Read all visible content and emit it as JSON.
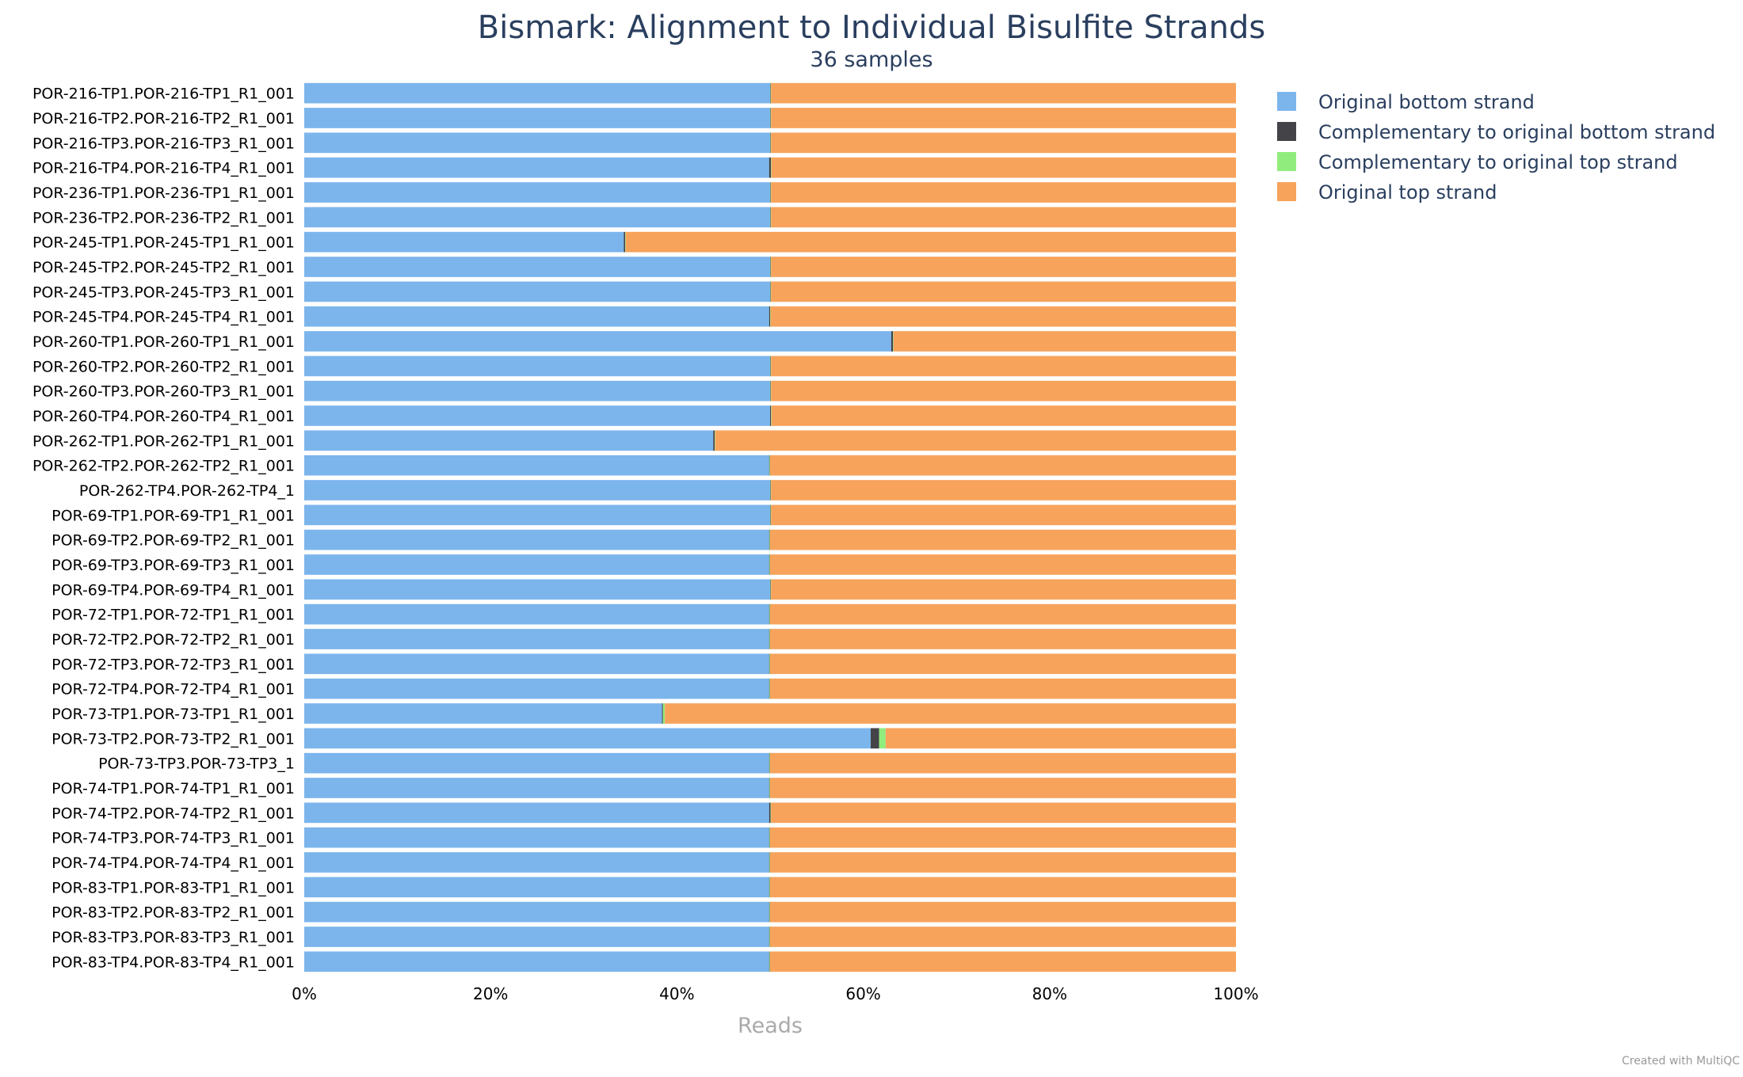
{
  "chart_data": {
    "type": "bar",
    "orientation": "horizontal",
    "stacking": "percent",
    "title": "Bismark: Alignment to Individual Bisulfite Strands",
    "subtitle": "36 samples",
    "xlabel": "Reads",
    "xlim": [
      0,
      100
    ],
    "xticks": [
      "0%",
      "20%",
      "40%",
      "60%",
      "80%",
      "100%"
    ],
    "legend_position": "top-right",
    "credit": "Created with MultiQC",
    "categories": [
      "POR-216-TP1.POR-216-TP1_R1_001",
      "POR-216-TP2.POR-216-TP2_R1_001",
      "POR-216-TP3.POR-216-TP3_R1_001",
      "POR-216-TP4.POR-216-TP4_R1_001",
      "POR-236-TP1.POR-236-TP1_R1_001",
      "POR-236-TP2.POR-236-TP2_R1_001",
      "POR-245-TP1.POR-245-TP1_R1_001",
      "POR-245-TP2.POR-245-TP2_R1_001",
      "POR-245-TP3.POR-245-TP3_R1_001",
      "POR-245-TP4.POR-245-TP4_R1_001",
      "POR-260-TP1.POR-260-TP1_R1_001",
      "POR-260-TP2.POR-260-TP2_R1_001",
      "POR-260-TP3.POR-260-TP3_R1_001",
      "POR-260-TP4.POR-260-TP4_R1_001",
      "POR-262-TP1.POR-262-TP1_R1_001",
      "POR-262-TP2.POR-262-TP2_R1_001",
      "POR-262-TP4.POR-262-TP4_1",
      "POR-69-TP1.POR-69-TP1_R1_001",
      "POR-69-TP2.POR-69-TP2_R1_001",
      "POR-69-TP3.POR-69-TP3_R1_001",
      "POR-69-TP4.POR-69-TP4_R1_001",
      "POR-72-TP1.POR-72-TP1_R1_001",
      "POR-72-TP2.POR-72-TP2_R1_001",
      "POR-72-TP3.POR-72-TP3_R1_001",
      "POR-72-TP4.POR-72-TP4_R1_001",
      "POR-73-TP1.POR-73-TP1_R1_001",
      "POR-73-TP2.POR-73-TP2_R1_001",
      "POR-73-TP3.POR-73-TP3_1",
      "POR-74-TP1.POR-74-TP1_R1_001",
      "POR-74-TP2.POR-74-TP2_R1_001",
      "POR-74-TP3.POR-74-TP3_R1_001",
      "POR-74-TP4.POR-74-TP4_R1_001",
      "POR-83-TP1.POR-83-TP1_R1_001",
      "POR-83-TP2.POR-83-TP2_R1_001",
      "POR-83-TP3.POR-83-TP3_R1_001",
      "POR-83-TP4.POR-83-TP4_R1_001"
    ],
    "series": [
      {
        "name": "Original bottom strand",
        "color": "#7cb5ec",
        "values": [
          50.0,
          50.0,
          50.0,
          49.9,
          50.0,
          50.0,
          34.3,
          50.0,
          50.0,
          49.9,
          63.0,
          50.0,
          50.0,
          50.0,
          43.9,
          49.9,
          50.0,
          50.0,
          49.9,
          49.9,
          50.0,
          49.9,
          49.9,
          49.9,
          49.9,
          38.4,
          60.8,
          49.9,
          49.9,
          49.9,
          49.9,
          49.9,
          49.9,
          49.9,
          49.9,
          49.9
        ]
      },
      {
        "name": "Complementary to original bottom strand",
        "color": "#434348",
        "values": [
          0.05,
          0.05,
          0.05,
          0.2,
          0.05,
          0.05,
          0.15,
          0.05,
          0.05,
          0.1,
          0.2,
          0.05,
          0.05,
          0.1,
          0.15,
          0.05,
          0.05,
          0.05,
          0.05,
          0.05,
          0.05,
          0.05,
          0.05,
          0.05,
          0.05,
          0.1,
          0.9,
          0.05,
          0.05,
          0.15,
          0.05,
          0.05,
          0.05,
          0.05,
          0.05,
          0.05
        ]
      },
      {
        "name": "Complementary to original top strand",
        "color": "#90ed7d",
        "values": [
          0.05,
          0.05,
          0.05,
          0.05,
          0.05,
          0.05,
          0.05,
          0.05,
          0.05,
          0.05,
          0.05,
          0.05,
          0.05,
          0.05,
          0.05,
          0.05,
          0.05,
          0.05,
          0.05,
          0.05,
          0.05,
          0.05,
          0.05,
          0.05,
          0.05,
          0.2,
          0.7,
          0.05,
          0.05,
          0.05,
          0.05,
          0.05,
          0.05,
          0.05,
          0.05,
          0.05
        ]
      },
      {
        "name": "Original top strand",
        "color": "#f7a35c",
        "values": [
          49.9,
          49.9,
          49.9,
          49.85,
          49.9,
          49.9,
          65.5,
          49.9,
          49.9,
          49.95,
          36.75,
          49.9,
          49.9,
          49.85,
          55.9,
          50.0,
          49.9,
          49.9,
          50.0,
          50.0,
          49.9,
          50.0,
          50.0,
          50.0,
          50.0,
          61.3,
          37.6,
          50.0,
          50.0,
          49.9,
          50.0,
          50.0,
          50.0,
          50.0,
          50.0,
          50.0
        ]
      }
    ]
  }
}
